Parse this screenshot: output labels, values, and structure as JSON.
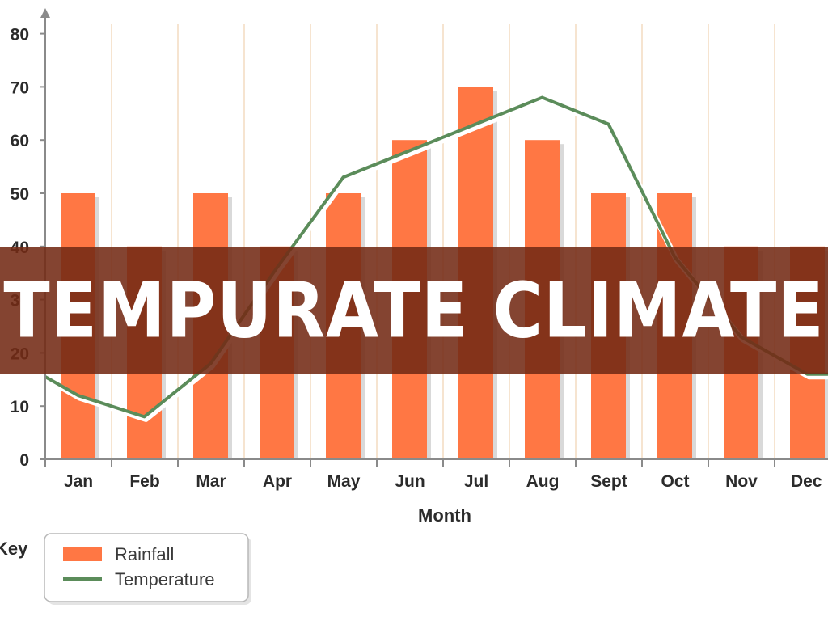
{
  "title": "TEMPURATE CLIMATE",
  "chart_data": {
    "type": "bar",
    "categories": [
      "Jan",
      "Feb",
      "Mar",
      "Apr",
      "May",
      "Jun",
      "Jul",
      "Aug",
      "Sept",
      "Oct",
      "Nov",
      "Dec"
    ],
    "series": [
      {
        "name": "Rainfall",
        "type": "bar",
        "values": [
          50,
          40,
          50,
          40,
          50,
          60,
          70,
          60,
          50,
          50,
          40,
          40
        ]
      },
      {
        "name": "Temperature",
        "type": "line",
        "values": [
          12,
          8,
          18,
          36,
          53,
          58,
          63,
          68,
          63,
          38,
          23,
          16
        ]
      }
    ],
    "xlabel": "Month",
    "ylabel": "",
    "ylim": [
      0,
      80
    ],
    "yticks": [
      0,
      10,
      20,
      30,
      40,
      50,
      60,
      70,
      80
    ],
    "grid": "vertical",
    "legend": {
      "title": "Key",
      "position": "bottom-left"
    },
    "colors": {
      "Rainfall": "#ff7744",
      "Temperature": "#5b8c5a",
      "grid": "#f3dcc0",
      "axis": "#8a8a8a"
    }
  }
}
